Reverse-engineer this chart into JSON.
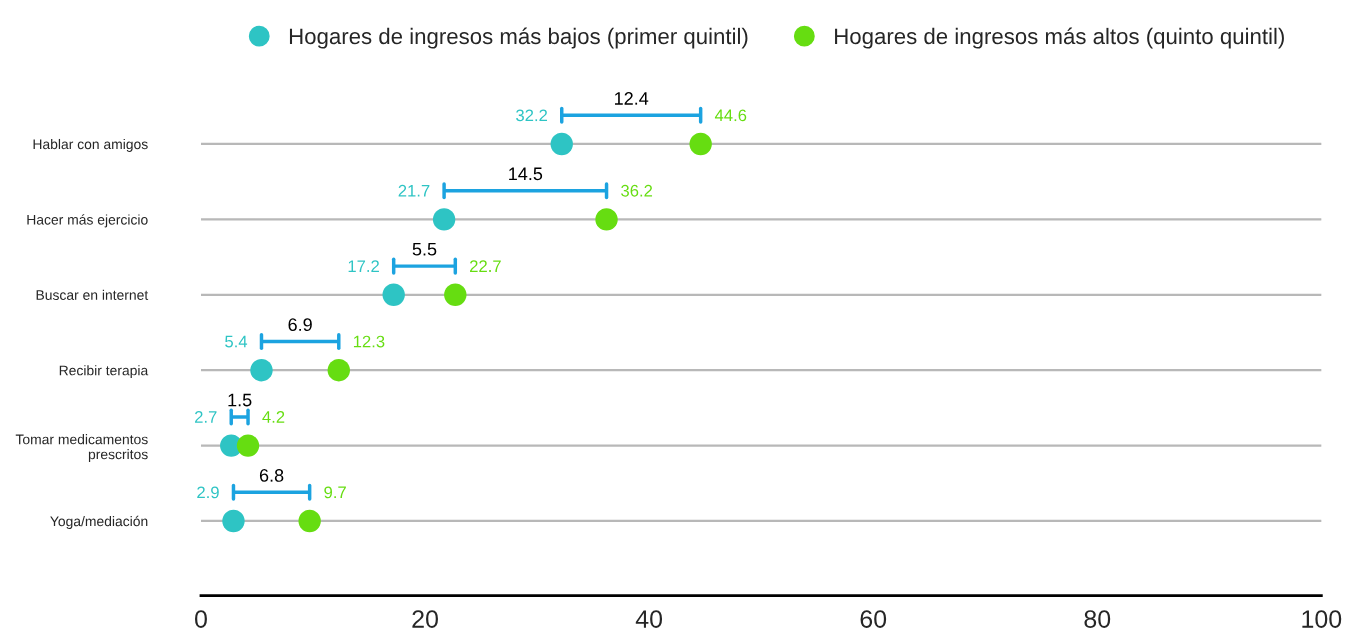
{
  "chart_data": {
    "type": "scatter",
    "orientation": "horizontal",
    "categories": [
      "Hablar con amigos",
      "Hacer más ejercicio",
      "Buscar en internet",
      "Recibir terapia",
      "Tomar medicamentos\nprescritos",
      "Yoga/mediación"
    ],
    "series": [
      {
        "name": "Hogares de ingresos más bajos (primer quintil)",
        "color": "#2ec4c4",
        "values": [
          32.2,
          21.7,
          17.2,
          5.4,
          2.7,
          2.9
        ]
      },
      {
        "name": "Hogares de ingresos más altos (quinto quintil)",
        "color": "#66dd11",
        "values": [
          44.6,
          36.2,
          22.7,
          12.3,
          4.2,
          9.7
        ]
      }
    ],
    "xlim": [
      0,
      100
    ],
    "xticks": [
      0,
      20,
      40,
      60,
      80,
      100
    ],
    "data_labels": true,
    "marker": "circle",
    "grid": "y",
    "legend": "top",
    "annotations": [
      "12.4",
      "14.5",
      "5.5",
      "6.9",
      "1.5",
      "6.8"
    ]
  }
}
